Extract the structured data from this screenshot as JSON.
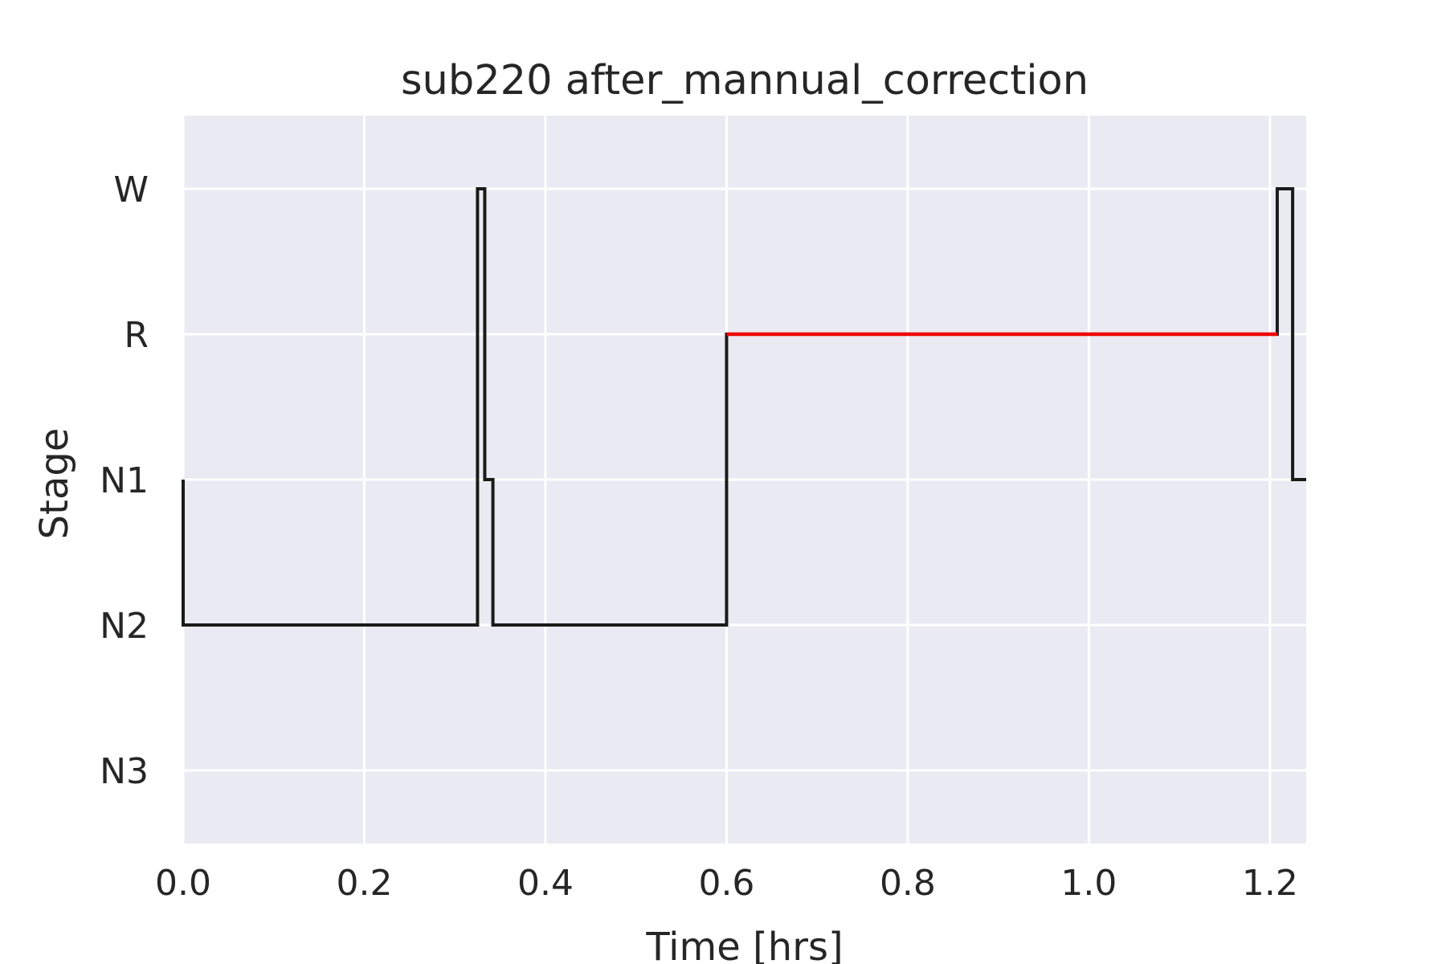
{
  "chart_data": {
    "type": "line",
    "title": "sub220 after_mannual_correction",
    "xlabel": "Time [hrs]",
    "ylabel": "Stage",
    "xlim": [
      0.0,
      1.24
    ],
    "x_ticks": [
      0.0,
      0.2,
      0.4,
      0.6,
      0.8,
      1.0,
      1.2
    ],
    "x_tick_labels": [
      "0.0",
      "0.2",
      "0.4",
      "0.6",
      "0.8",
      "1.0",
      "1.2"
    ],
    "y_categories": [
      "W",
      "R",
      "N1",
      "N2",
      "N3"
    ],
    "grid": true,
    "series": [
      {
        "color": "#1a1a1a",
        "step_points": [
          {
            "x": 0.0,
            "stage": "N1"
          },
          {
            "x": 0.0,
            "stage": "N2"
          },
          {
            "x": 0.325,
            "stage": "W"
          },
          {
            "x": 0.333,
            "stage": "N1"
          },
          {
            "x": 0.342,
            "stage": "N2"
          },
          {
            "x": 0.6,
            "stage": "R"
          },
          {
            "x": 1.208,
            "stage": "W"
          },
          {
            "x": 1.225,
            "stage": "N1"
          },
          {
            "x": 1.24,
            "stage": "N1"
          }
        ]
      }
    ],
    "highlight_segments": [
      {
        "color": "#ee0000",
        "stage": "R",
        "x_start": 0.6,
        "x_end": 1.208
      }
    ]
  }
}
